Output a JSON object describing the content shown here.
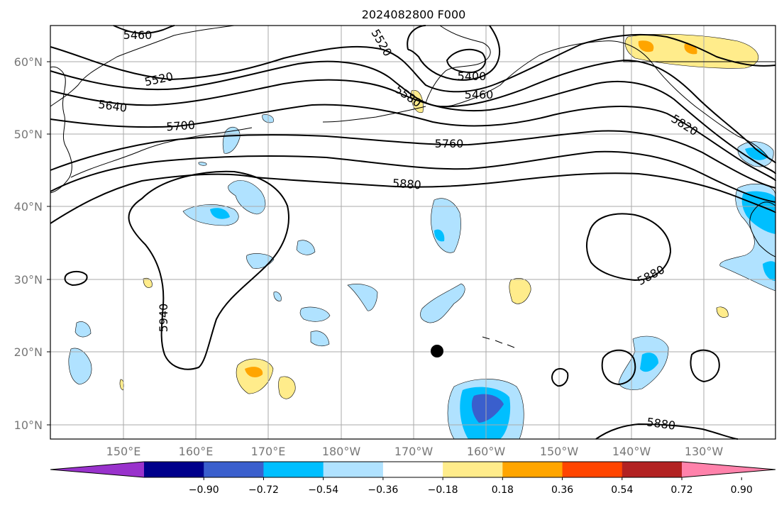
{
  "title": "2024082800 F000",
  "lat_labels": [
    "60°N",
    "50°N",
    "40°N",
    "30°N",
    "20°N",
    "10°N"
  ],
  "lon_labels": [
    "150°E",
    "160°E",
    "170°E",
    "180°W",
    "170°W",
    "160°W",
    "150°W",
    "140°W",
    "130°W"
  ],
  "contour_labels": [
    "5460",
    "5520",
    "5640",
    "5700",
    "5520",
    "5580",
    "5400",
    "5460",
    "5760",
    "5820",
    "5880",
    "5940",
    "5880",
    "5880"
  ],
  "colorbar": {
    "ticks": [
      "−0.90",
      "−0.72",
      "−0.54",
      "−0.36",
      "−0.18",
      "0.18",
      "0.36",
      "0.54",
      "0.72",
      "0.90"
    ],
    "colors": [
      "#9932cc",
      "#00008b",
      "#3a5fcd",
      "#00bfff",
      "#b0e2ff",
      "#ffffff",
      "#ffec8b",
      "#ffa500",
      "#ff4500",
      "#b22222",
      "#ff82ab"
    ]
  }
}
